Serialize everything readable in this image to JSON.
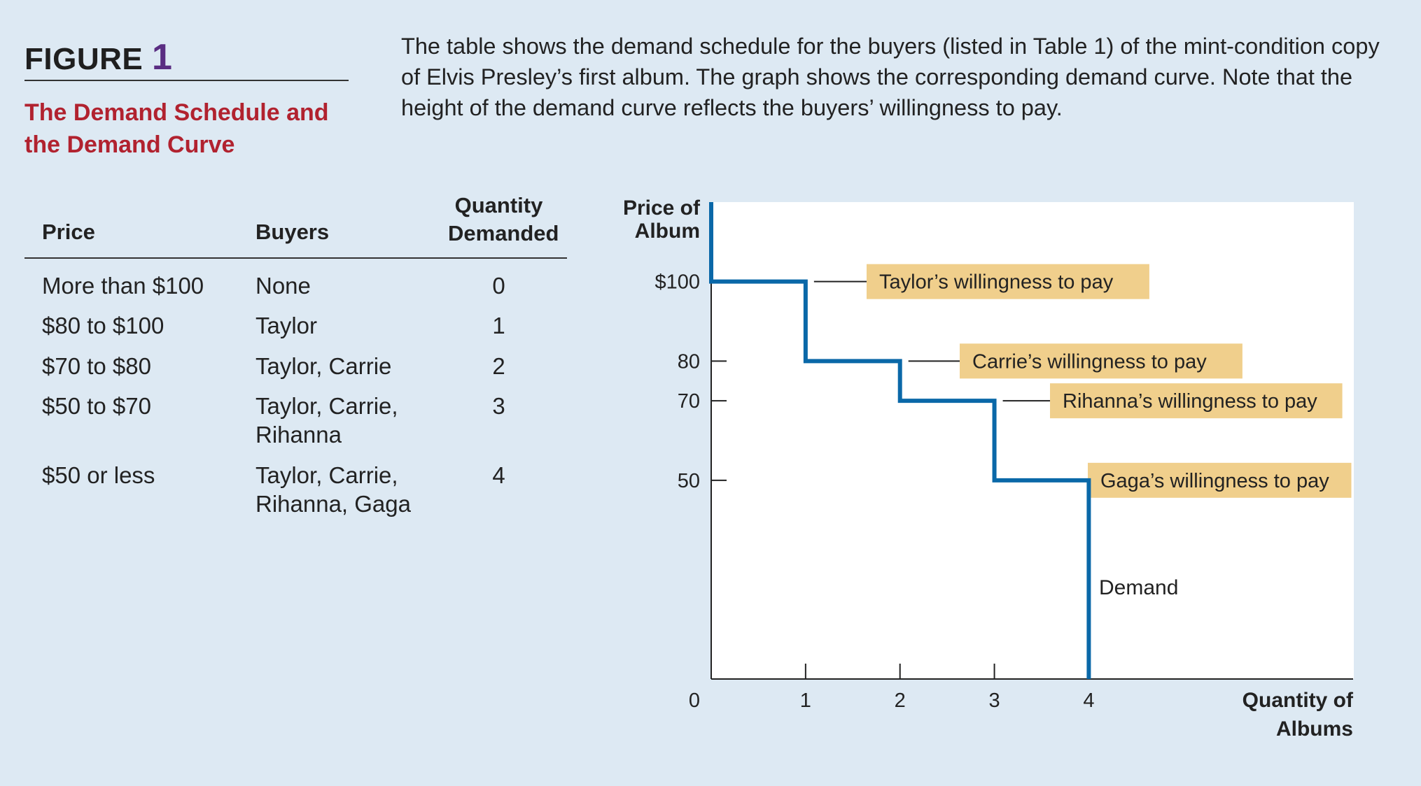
{
  "figure": {
    "label": "FIGURE",
    "number": "1",
    "subtitle_line1": "The Demand Schedule and",
    "subtitle_line2": "the Demand Curve",
    "caption": "The table shows the demand schedule for the buyers (listed in Table 1) of the mint-condition copy of Elvis Presley’s first album. The graph shows the corresponding demand curve. Note that the height of the demand curve reflects the buyers’ willingness to pay."
  },
  "table": {
    "headers": {
      "price": "Price",
      "buyers": "Buyers",
      "quantity_line1": "Quantity",
      "quantity_line2": "Demanded"
    },
    "rows": [
      {
        "price": "More than $100",
        "buyers_line1": "None",
        "buyers_line2": "",
        "quantity": "0"
      },
      {
        "price": "$80 to $100",
        "buyers_line1": "Taylor",
        "buyers_line2": "",
        "quantity": "1"
      },
      {
        "price": "$70 to $80",
        "buyers_line1": "Taylor, Carrie",
        "buyers_line2": "",
        "quantity": "2"
      },
      {
        "price": "$50 to $70",
        "buyers_line1": "Taylor, Carrie,",
        "buyers_line2": "Rihanna",
        "quantity": "3"
      },
      {
        "price": "$50 or less",
        "buyers_line1": "Taylor, Carrie,",
        "buyers_line2": "Rihanna, Gaga",
        "quantity": "4"
      }
    ]
  },
  "chart_data": {
    "type": "line",
    "title": "",
    "ylabel_line1": "Price of",
    "ylabel_line2": "Album",
    "xlabel_line1": "Quantity of",
    "xlabel_line2": "Albums",
    "xlim": [
      0,
      6.8
    ],
    "ylim": [
      0,
      120
    ],
    "x_ticks": [
      {
        "value": 0,
        "label": "0"
      },
      {
        "value": 1,
        "label": "1"
      },
      {
        "value": 2,
        "label": "2"
      },
      {
        "value": 3,
        "label": "3"
      },
      {
        "value": 4,
        "label": "4"
      }
    ],
    "y_ticks": [
      {
        "value": 100,
        "label": "$100"
      },
      {
        "value": 80,
        "label": "80"
      },
      {
        "value": 70,
        "label": "70"
      },
      {
        "value": 50,
        "label": "50"
      }
    ],
    "series": [
      {
        "name": "Demand",
        "color": "#0a68a8",
        "step_points": [
          {
            "x": 0,
            "y": 120
          },
          {
            "x": 0,
            "y": 100
          },
          {
            "x": 1,
            "y": 100
          },
          {
            "x": 1,
            "y": 80
          },
          {
            "x": 2,
            "y": 80
          },
          {
            "x": 2,
            "y": 70
          },
          {
            "x": 3,
            "y": 70
          },
          {
            "x": 3,
            "y": 50
          },
          {
            "x": 4,
            "y": 50
          },
          {
            "x": 4,
            "y": 0
          }
        ]
      }
    ],
    "series_label": "Demand",
    "annotations": [
      {
        "text": "Taylor’s willingness to pay",
        "x": 1,
        "y": 100
      },
      {
        "text": "Carrie’s willingness to pay",
        "x": 2,
        "y": 80
      },
      {
        "text": "Rihanna’s willingness to pay",
        "x": 3,
        "y": 70
      },
      {
        "text": "Gaga’s willingness to pay",
        "x": 4,
        "y": 50
      }
    ],
    "annotation_fill": "#f0cf8c"
  }
}
